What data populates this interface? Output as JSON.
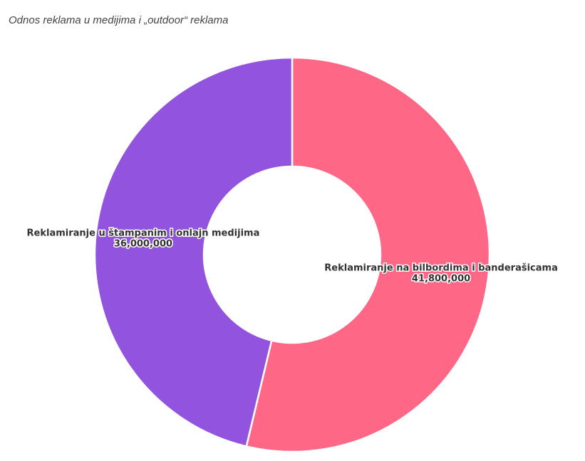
{
  "chart_data": {
    "type": "pie",
    "title": "Odnos reklama u medijima i „outdoor“ reklama",
    "donut": true,
    "slices": [
      {
        "label": "Reklamiranje na bilbordima i banderašicama",
        "value": 41800000,
        "value_label": "41,800,000",
        "color": "#ff6786"
      },
      {
        "label": "Reklamiranje u štampanim i onlajn medijima",
        "value": 36000000,
        "value_label": "36,000,000",
        "color": "#9254de"
      }
    ]
  }
}
